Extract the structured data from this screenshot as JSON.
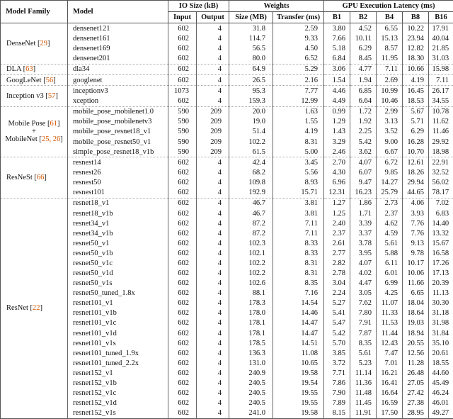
{
  "table": {
    "citation_color": "#d45500",
    "header": {
      "model_family": "Model Family",
      "model": "Model",
      "io_size": "IO Size (kB)",
      "weights": "Weights",
      "gpu_latency": "GPU Execution Latency (ms)",
      "input": "Input",
      "output": "Output",
      "size_mb": "Size (MB)",
      "transfer_ms": "Transfer (ms)",
      "b1": "B1",
      "b2": "B2",
      "b4": "B4",
      "b8": "B8",
      "b16": "B16"
    },
    "groups": [
      {
        "family_lines": [
          [
            {
              "t": "DenseNet ["
            },
            {
              "t": "29",
              "c": true
            },
            {
              "t": "]"
            }
          ]
        ],
        "rows": [
          [
            "densenet121",
            "602",
            "4",
            "31.8",
            "2.59",
            "3.80",
            "4.52",
            "6.55",
            "10.22",
            "17.91"
          ],
          [
            "densenet161",
            "602",
            "4",
            "114.7",
            "9.33",
            "7.66",
            "10.11",
            "15.13",
            "23.94",
            "40.04"
          ],
          [
            "densenet169",
            "602",
            "4",
            "56.5",
            "4.50",
            "5.18",
            "6.29",
            "8.57",
            "12.82",
            "21.85"
          ],
          [
            "densenet201",
            "602",
            "4",
            "80.0",
            "6.52",
            "6.84",
            "8.45",
            "11.95",
            "18.30",
            "31.03"
          ]
        ]
      },
      {
        "family_lines": [
          [
            {
              "t": "DLA ["
            },
            {
              "t": "63",
              "c": true
            },
            {
              "t": "]"
            }
          ]
        ],
        "rows": [
          [
            "dla34",
            "602",
            "4",
            "64.9",
            "5.29",
            "3.06",
            "4.77",
            "7.11",
            "10.66",
            "15.98"
          ]
        ]
      },
      {
        "family_lines": [
          [
            {
              "t": "GoogLeNet ["
            },
            {
              "t": "56",
              "c": true
            },
            {
              "t": "]"
            }
          ]
        ],
        "rows": [
          [
            "googlenet",
            "602",
            "4",
            "26.5",
            "2.16",
            "1.54",
            "1.94",
            "2.69",
            "4.19",
            "7.11"
          ]
        ]
      },
      {
        "family_lines": [
          [
            {
              "t": "Inception v3 ["
            },
            {
              "t": "57",
              "c": true
            },
            {
              "t": "]"
            }
          ]
        ],
        "rows": [
          [
            "inceptionv3",
            "1073",
            "4",
            "95.3",
            "7.77",
            "4.46",
            "6.85",
            "10.99",
            "16.45",
            "26.17"
          ],
          [
            "xception",
            "602",
            "4",
            "159.3",
            "12.99",
            "4.49",
            "6.64",
            "10.46",
            "18.53",
            "34.55"
          ]
        ]
      },
      {
        "family_lines": [
          [
            {
              "t": "Mobile Pose ["
            },
            {
              "t": "61",
              "c": true
            },
            {
              "t": "]"
            }
          ],
          [
            {
              "t": "+"
            }
          ],
          [
            {
              "t": "MobileNet ["
            },
            {
              "t": "25, 26",
              "c": true
            },
            {
              "t": "]"
            }
          ]
        ],
        "rows": [
          [
            "mobile_pose_mobilenet1.0",
            "590",
            "209",
            "20.0",
            "1.63",
            "0.99",
            "1.72",
            "2.99",
            "5.67",
            "10.78"
          ],
          [
            "mobile_pose_mobilenetv3",
            "590",
            "209",
            "19.0",
            "1.55",
            "1.29",
            "1.92",
            "3.13",
            "5.71",
            "11.62"
          ],
          [
            "mobile_pose_resnet18_v1",
            "590",
            "209",
            "51.4",
            "4.19",
            "1.43",
            "2.25",
            "3.52",
            "6.29",
            "11.46"
          ],
          [
            "mobile_pose_resnet50_v1",
            "590",
            "209",
            "102.2",
            "8.31",
            "3.29",
            "5.42",
            "9.00",
            "16.28",
            "29.92"
          ],
          [
            "simple_pose_resnet18_v1b",
            "590",
            "209",
            "61.5",
            "5.00",
            "2.46",
            "3.62",
            "6.67",
            "10.70",
            "18.98"
          ]
        ]
      },
      {
        "family_lines": [
          [
            {
              "t": "ResNeSt ["
            },
            {
              "t": "66",
              "c": true
            },
            {
              "t": "]"
            }
          ]
        ],
        "rows": [
          [
            "resnest14",
            "602",
            "4",
            "42.4",
            "3.45",
            "2.70",
            "4.07",
            "6.72",
            "12.61",
            "22.91"
          ],
          [
            "resnest26",
            "602",
            "4",
            "68.2",
            "5.56",
            "4.30",
            "6.07",
            "9.85",
            "18.26",
            "32.52"
          ],
          [
            "resnest50",
            "602",
            "4",
            "109.8",
            "8.93",
            "6.96",
            "9.47",
            "14.27",
            "29.94",
            "56.02"
          ],
          [
            "resnest101",
            "602",
            "4",
            "192.9",
            "15.71",
            "12.31",
            "16.23",
            "25.79",
            "44.65",
            "78.17"
          ]
        ]
      },
      {
        "family_lines": [
          [
            {
              "t": "ResNet ["
            },
            {
              "t": "22",
              "c": true
            },
            {
              "t": "]"
            }
          ]
        ],
        "rows": [
          [
            "resnet18_v1",
            "602",
            "4",
            "46.7",
            "3.81",
            "1.27",
            "1.86",
            "2.73",
            "4.06",
            "7.02"
          ],
          [
            "resnet18_v1b",
            "602",
            "4",
            "46.7",
            "3.81",
            "1.25",
            "1.71",
            "2.37",
            "3.93",
            "6.83"
          ],
          [
            "resnet34_v1",
            "602",
            "4",
            "87.2",
            "7.11",
            "2.40",
            "3.39",
            "4.62",
            "7.76",
            "14.40"
          ],
          [
            "resnet34_v1b",
            "602",
            "4",
            "87.2",
            "7.11",
            "2.37",
            "3.37",
            "4.59",
            "7.76",
            "13.32"
          ],
          [
            "resnet50_v1",
            "602",
            "4",
            "102.3",
            "8.33",
            "2.61",
            "3.78",
            "5.61",
            "9.13",
            "15.67"
          ],
          [
            "resnet50_v1b",
            "602",
            "4",
            "102.1",
            "8.33",
            "2.77",
            "3.95",
            "5.88",
            "9.78",
            "16.58"
          ],
          [
            "resnet50_v1c",
            "602",
            "4",
            "102.2",
            "8.31",
            "2.82",
            "4.07",
            "6.11",
            "10.17",
            "17.26"
          ],
          [
            "resnet50_v1d",
            "602",
            "4",
            "102.2",
            "8.31",
            "2.78",
            "4.02",
            "6.01",
            "10.06",
            "17.13"
          ],
          [
            "resnet50_v1s",
            "602",
            "4",
            "102.6",
            "8.35",
            "3.04",
            "4.47",
            "6.99",
            "11.66",
            "20.39"
          ],
          [
            "resnet50_tuned_1.8x",
            "602",
            "4",
            "88.1",
            "7.16",
            "2.24",
            "3.05",
            "4.25",
            "6.65",
            "11.13"
          ],
          [
            "resnet101_v1",
            "602",
            "4",
            "178.3",
            "14.54",
            "5.27",
            "7.62",
            "11.07",
            "18.04",
            "30.30"
          ],
          [
            "resnet101_v1b",
            "602",
            "4",
            "178.0",
            "14.46",
            "5.41",
            "7.80",
            "11.33",
            "18.64",
            "31.18"
          ],
          [
            "resnet101_v1c",
            "602",
            "4",
            "178.1",
            "14.47",
            "5.47",
            "7.91",
            "11.53",
            "19.03",
            "31.98"
          ],
          [
            "resnet101_v1d",
            "602",
            "4",
            "178.1",
            "14.47",
            "5.42",
            "7.87",
            "11.44",
            "18.94",
            "31.84"
          ],
          [
            "resnet101_v1s",
            "602",
            "4",
            "178.5",
            "14.51",
            "5.70",
            "8.35",
            "12.43",
            "20.55",
            "35.10"
          ],
          [
            "resnet101_tuned_1.9x",
            "602",
            "4",
            "136.3",
            "11.08",
            "3.85",
            "5.61",
            "7.47",
            "12.56",
            "20.61"
          ],
          [
            "resnet101_tuned_2.2x",
            "602",
            "4",
            "131.0",
            "10.65",
            "3.72",
            "5.23",
            "7.01",
            "11.28",
            "18.55"
          ],
          [
            "resnet152_v1",
            "602",
            "4",
            "240.9",
            "19.58",
            "7.71",
            "11.14",
            "16.21",
            "26.48",
            "44.60"
          ],
          [
            "resnet152_v1b",
            "602",
            "4",
            "240.5",
            "19.54",
            "7.86",
            "11.36",
            "16.41",
            "27.05",
            "45.49"
          ],
          [
            "resnet152_v1c",
            "602",
            "4",
            "240.5",
            "19.55",
            "7.90",
            "11.48",
            "16.64",
            "27.42",
            "46.24"
          ],
          [
            "resnet152_v1d",
            "602",
            "4",
            "240.5",
            "19.55",
            "7.89",
            "11.45",
            "16.59",
            "27.38",
            "46.01"
          ],
          [
            "resnet152_v1s",
            "602",
            "4",
            "241.0",
            "19.58",
            "8.15",
            "11.91",
            "17.50",
            "28.95",
            "49.27"
          ]
        ]
      }
    ]
  }
}
